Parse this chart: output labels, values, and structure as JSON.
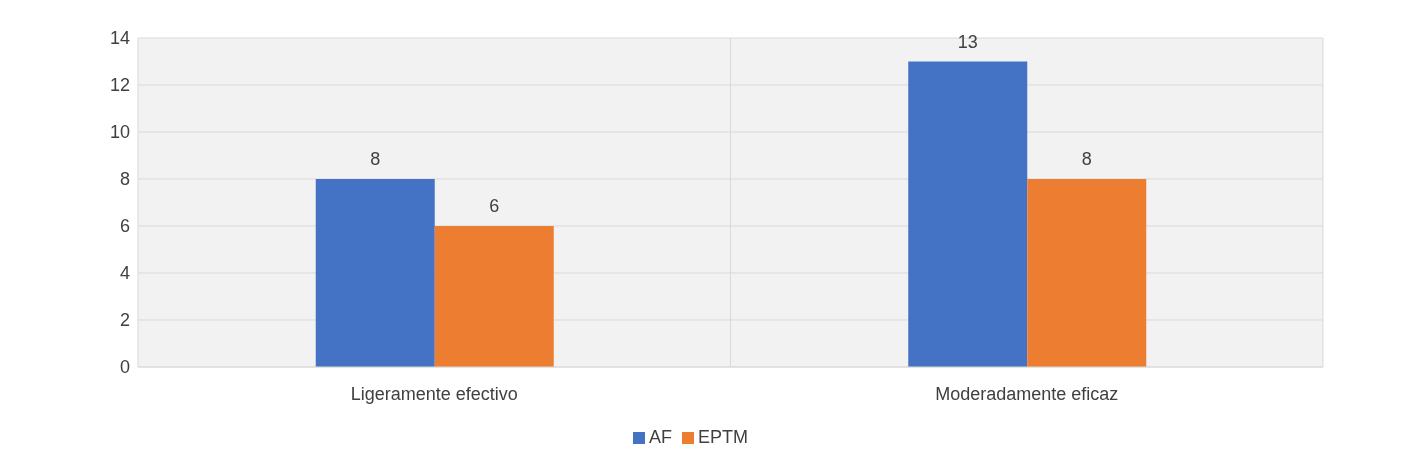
{
  "chart_data": {
    "type": "bar",
    "categories": [
      "Ligeramente efectivo",
      "Moderadamente eficaz"
    ],
    "series": [
      {
        "name": "AF",
        "color": "#4472c4",
        "values": [
          8,
          13
        ]
      },
      {
        "name": "EPTM",
        "color": "#ed7d31",
        "values": [
          6,
          8
        ]
      }
    ],
    "ylim": [
      0,
      14
    ],
    "yticks": [
      0,
      2,
      4,
      6,
      8,
      10,
      12,
      14
    ],
    "grid": true,
    "data_labels": true,
    "legend": "bottom"
  }
}
